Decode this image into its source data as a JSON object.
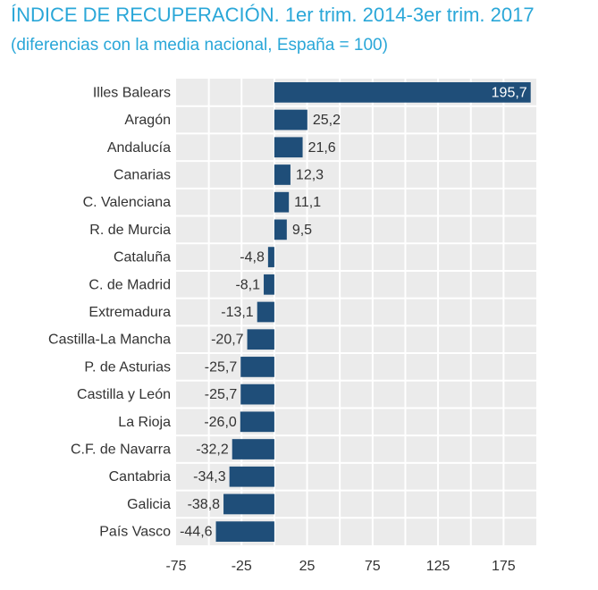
{
  "chart_data": {
    "type": "bar",
    "orientation": "horizontal",
    "title": "ÍNDICE DE RECUPERACIÓN. 1er trim. 2014-3er trim. 2017",
    "subtitle": "(diferencias con la media nacional, España = 100)",
    "categories": [
      "Illes Balears",
      "Aragón",
      "Andalucía",
      "Canarias",
      "C. Valenciana",
      "R. de Murcia",
      "Cataluña",
      "C. de Madrid",
      "Extremadura",
      "Castilla-La Mancha",
      "P. de Asturias",
      "Castilla y León",
      "La Rioja",
      "C.F. de Navarra",
      "Cantabria",
      "Galicia",
      "País Vasco"
    ],
    "values": [
      195.7,
      25.2,
      21.6,
      12.3,
      11.1,
      9.5,
      -4.8,
      -8.1,
      -13.1,
      -20.7,
      -25.7,
      -25.7,
      -26.0,
      -32.2,
      -34.3,
      -38.8,
      -44.6
    ],
    "value_labels": [
      "195,7",
      "25,2",
      "21,6",
      "12,3",
      "11,1",
      "9,5",
      "-4,8",
      "-8,1",
      "-13,1",
      "-20,7",
      "-25,7",
      "-25,7",
      "-26,0",
      "-32,2",
      "-34,3",
      "-38,8",
      "-44,6"
    ],
    "xlim": [
      -75,
      200
    ],
    "xticks": [
      -75,
      -25,
      25,
      75,
      125,
      175
    ],
    "xtick_labels": [
      "-75",
      "-25",
      "25",
      "75",
      "125",
      "175"
    ],
    "grid": true,
    "colors": {
      "bar": "#1f4e79",
      "plot_bg": "#ebebeb",
      "grid": "#ffffff",
      "title": "#2aa7d8"
    }
  }
}
